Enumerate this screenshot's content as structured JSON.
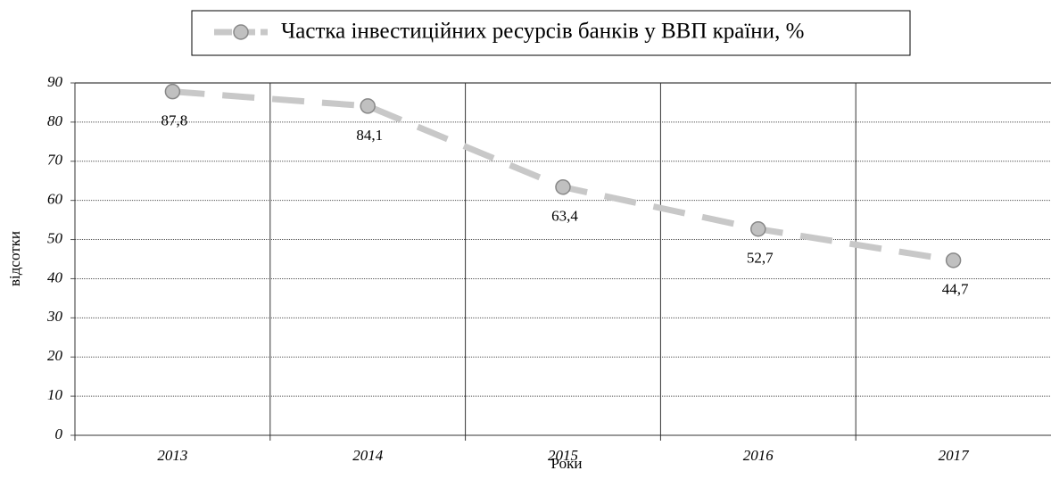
{
  "chart_data": {
    "type": "line",
    "x_label": "Роки",
    "y_label": "відсотки",
    "categories": [
      "2013",
      "2014",
      "2015",
      "2016",
      "2017"
    ],
    "series": [
      {
        "name": "Частка інвестиційних ресурсів банків у ВВП країни, %",
        "color": "#c8c8c8",
        "values": [
          87.8,
          84.1,
          63.4,
          52.7,
          44.7
        ],
        "value_labels": [
          "87,8",
          "84,1",
          "63,4",
          "52,7",
          "44,7"
        ]
      }
    ],
    "ylim": [
      0,
      90
    ],
    "yticks": [
      0,
      10,
      20,
      30,
      40,
      50,
      60,
      70,
      80,
      90
    ],
    "grid": true,
    "legend": "top"
  }
}
